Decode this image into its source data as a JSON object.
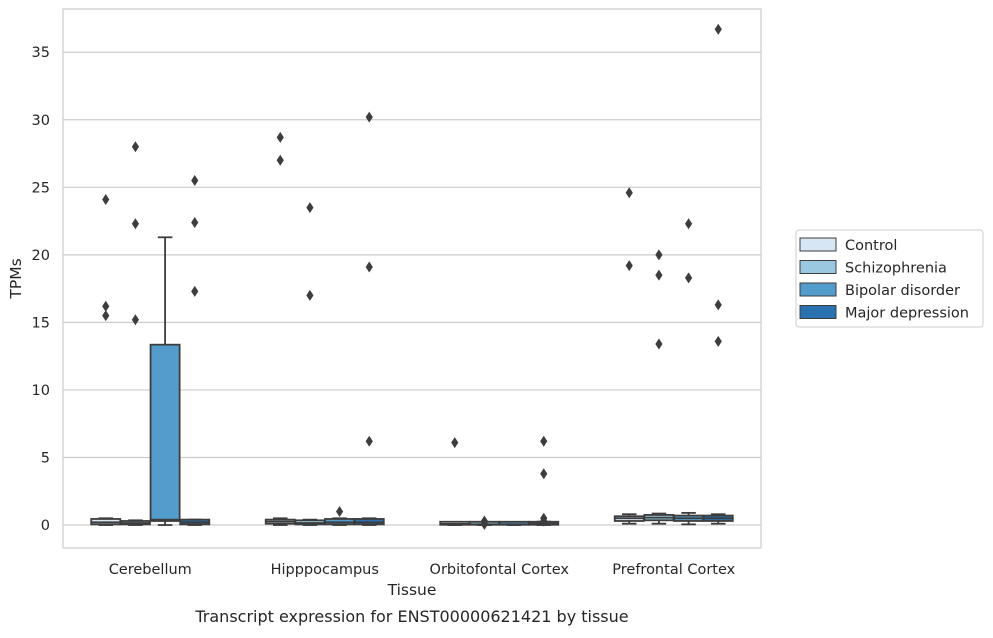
{
  "chart_data": {
    "type": "box",
    "caption": "Transcript expression for ENST00000621421 by tissue",
    "xlabel": "Tissue",
    "ylabel": "TPMs",
    "ylim": [
      -1.7,
      38.2
    ],
    "yticks": [
      0,
      5,
      10,
      15,
      20,
      25,
      30,
      35
    ],
    "grid": "horizontal",
    "legend_position": "right",
    "categories": [
      "Cerebellum",
      "Hipppocampus",
      "Orbitofontal Cortex",
      "Prefrontal Cortex"
    ],
    "series": [
      {
        "name": "Control",
        "color": "#d6e6f4",
        "boxes": [
          {
            "q1": 0.05,
            "median": 0.2,
            "q3": 0.45,
            "whisker_low": 0.0,
            "whisker_high": 0.5,
            "outliers": [
              24.1,
              16.2,
              15.5
            ]
          },
          {
            "q1": 0.1,
            "median": 0.25,
            "q3": 0.4,
            "whisker_low": 0.0,
            "whisker_high": 0.5,
            "outliers": [
              28.7,
              27.0
            ]
          },
          {
            "q1": 0.02,
            "median": 0.08,
            "q3": 0.15,
            "whisker_low": 0.0,
            "whisker_high": 0.2,
            "outliers": [
              6.1
            ]
          },
          {
            "q1": 0.3,
            "median": 0.5,
            "q3": 0.65,
            "whisker_low": 0.1,
            "whisker_high": 0.8,
            "outliers": [
              24.6,
              19.2
            ]
          }
        ]
      },
      {
        "name": "Schizophrenia",
        "color": "#9ac8e0",
        "boxes": [
          {
            "q1": 0.05,
            "median": 0.15,
            "q3": 0.3,
            "whisker_low": 0.0,
            "whisker_high": 0.35,
            "outliers": [
              28.0,
              22.3,
              15.2
            ]
          },
          {
            "q1": 0.05,
            "median": 0.15,
            "q3": 0.35,
            "whisker_low": 0.0,
            "whisker_high": 0.4,
            "outliers": [
              23.5,
              17.0
            ]
          },
          {
            "q1": 0.02,
            "median": 0.06,
            "q3": 0.12,
            "whisker_low": 0.0,
            "whisker_high": 0.15,
            "outliers": [
              0.3,
              0.1,
              0.05
            ]
          },
          {
            "q1": 0.35,
            "median": 0.55,
            "q3": 0.75,
            "whisker_low": 0.1,
            "whisker_high": 0.85,
            "outliers": [
              20.0,
              18.5,
              13.4
            ]
          }
        ]
      },
      {
        "name": "Bipolar disorder",
        "color": "#529dcb",
        "boxes": [
          {
            "q1": 0.3,
            "median": 0.4,
            "q3": 13.35,
            "whisker_low": 0.0,
            "whisker_high": 21.3,
            "outliers": []
          },
          {
            "q1": 0.05,
            "median": 0.2,
            "q3": 0.45,
            "whisker_low": 0.0,
            "whisker_high": 0.5,
            "outliers": [
              1.0
            ]
          },
          {
            "q1": 0.02,
            "median": 0.06,
            "q3": 0.12,
            "whisker_low": 0.0,
            "whisker_high": 0.15,
            "outliers": []
          },
          {
            "q1": 0.3,
            "median": 0.5,
            "q3": 0.7,
            "whisker_low": 0.05,
            "whisker_high": 0.9,
            "outliers": [
              22.3,
              18.3
            ]
          }
        ]
      },
      {
        "name": "Major depression",
        "color": "#2a71b1",
        "boxes": [
          {
            "q1": 0.05,
            "median": 0.2,
            "q3": 0.4,
            "whisker_low": 0.0,
            "whisker_high": 0.4,
            "outliers": [
              25.5,
              22.4,
              17.3
            ]
          },
          {
            "q1": 0.05,
            "median": 0.2,
            "q3": 0.45,
            "whisker_low": 0.0,
            "whisker_high": 0.5,
            "outliers": [
              30.2,
              19.1,
              6.2
            ]
          },
          {
            "q1": 0.02,
            "median": 0.1,
            "q3": 0.2,
            "whisker_low": 0.0,
            "whisker_high": 0.25,
            "outliers": [
              6.2,
              3.8,
              0.5,
              0.3
            ]
          },
          {
            "q1": 0.3,
            "median": 0.5,
            "q3": 0.7,
            "whisker_low": 0.1,
            "whisker_high": 0.8,
            "outliers": [
              36.7,
              16.3,
              13.6
            ]
          }
        ]
      }
    ]
  }
}
